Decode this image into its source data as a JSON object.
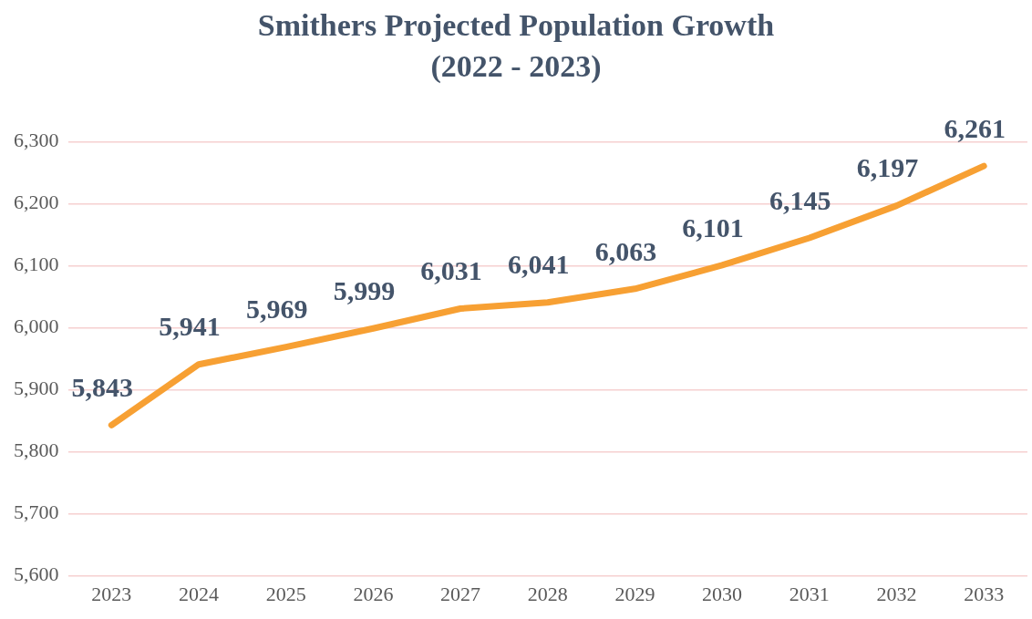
{
  "chart_data": {
    "type": "line",
    "title": "Smithers Projected Population Growth",
    "subtitle": "(2022 - 2023)",
    "categories": [
      "2023",
      "2024",
      "2025",
      "2026",
      "2027",
      "2028",
      "2029",
      "2030",
      "2031",
      "2032",
      "2033"
    ],
    "series": [
      {
        "color": "#f7a033",
        "values": [
          5843,
          5941,
          5969,
          5999,
          6031,
          6041,
          6063,
          6101,
          6145,
          6197,
          6261
        ],
        "value_labels": [
          "5,843",
          "5,941",
          "5,969",
          "5,999",
          "6,031",
          "6,041",
          "6,063",
          "6,101",
          "6,145",
          "6,197",
          "6,261"
        ]
      }
    ],
    "ylim": [
      5600,
      6300
    ],
    "yticks": [
      {
        "value": 5600,
        "label": "5,600"
      },
      {
        "value": 5700,
        "label": "5,700"
      },
      {
        "value": 5800,
        "label": "5,800"
      },
      {
        "value": 5900,
        "label": "5,900"
      },
      {
        "value": 6000,
        "label": "6,000"
      },
      {
        "value": 6100,
        "label": "6,100"
      },
      {
        "value": 6200,
        "label": "6,200"
      },
      {
        "value": 6300,
        "label": "6,300"
      }
    ],
    "grid": "y",
    "legend": false,
    "marker": "none",
    "line_style": "solid"
  }
}
